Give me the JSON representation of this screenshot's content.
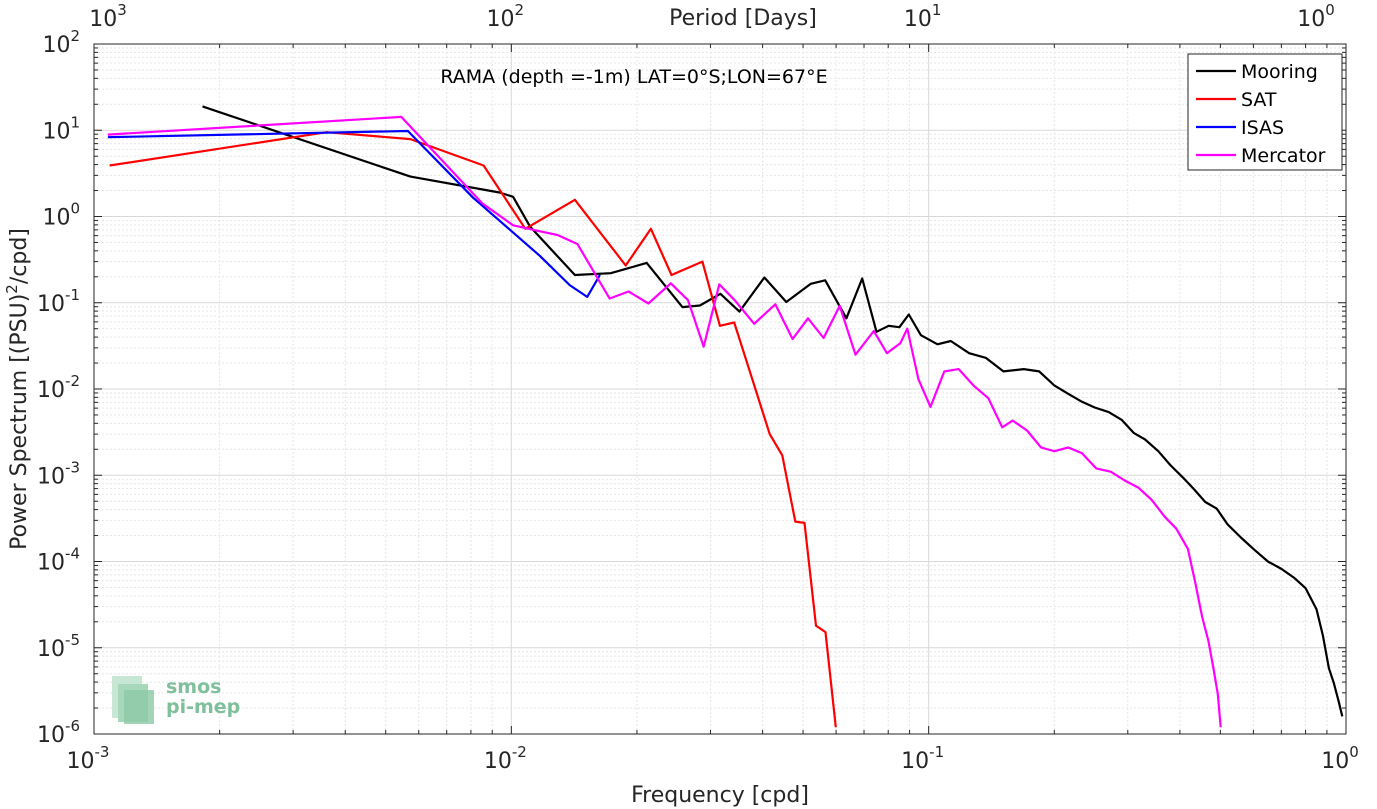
{
  "chart_data": {
    "type": "line",
    "title": "RAMA (depth =-1m) LAT=0°S;LON=67°E",
    "xlabel": "Frequency [cpd]",
    "ylabel": "Power Spectrum [(PSU)",
    "ylabel_sup": "2",
    "ylabel_tail": "/cpd]",
    "top_xlabel": "Period [Days]",
    "x_scale": "log",
    "y_scale": "log",
    "xlim": [
      0.001,
      1
    ],
    "ylim": [
      1e-06,
      100
    ],
    "grid": true,
    "legend_position": "top-right",
    "x_ticks": [
      {
        "value": 0.001,
        "base": "10",
        "exp": "-3"
      },
      {
        "value": 0.01,
        "base": "10",
        "exp": "-2"
      },
      {
        "value": 0.1,
        "base": "10",
        "exp": "-1"
      },
      {
        "value": 1,
        "base": "10",
        "exp": "0"
      }
    ],
    "top_ticks": [
      {
        "value": 0.001,
        "base": "10",
        "exp": "3"
      },
      {
        "value": 0.01,
        "base": "10",
        "exp": "2"
      },
      {
        "value": 0.1,
        "base": "10",
        "exp": "1"
      },
      {
        "value": 1,
        "base": "10",
        "exp": "0"
      }
    ],
    "y_ticks": [
      {
        "value": 100,
        "base": "10",
        "exp": "2"
      },
      {
        "value": 10,
        "base": "10",
        "exp": "1"
      },
      {
        "value": 1,
        "base": "10",
        "exp": "0"
      },
      {
        "value": 0.1,
        "base": "10",
        "exp": "-1"
      },
      {
        "value": 0.01,
        "base": "10",
        "exp": "-2"
      },
      {
        "value": 0.001,
        "base": "10",
        "exp": "-3"
      },
      {
        "value": 0.0001,
        "base": "10",
        "exp": "-4"
      },
      {
        "value": 1e-05,
        "base": "10",
        "exp": "-5"
      },
      {
        "value": 1e-06,
        "base": "10",
        "exp": "-6"
      }
    ],
    "series": [
      {
        "name": "Mooring",
        "color": "#000000",
        "points": [
          [
            0.00182,
            18.9
          ],
          [
            0.00573,
            2.9
          ],
          [
            0.00937,
            1.9
          ],
          [
            0.0101,
            1.69
          ],
          [
            0.0111,
            0.76
          ],
          [
            0.0142,
            0.21
          ],
          [
            0.0173,
            0.22
          ],
          [
            0.0211,
            0.29
          ],
          [
            0.0257,
            0.089
          ],
          [
            0.0283,
            0.093
          ],
          [
            0.0317,
            0.127
          ],
          [
            0.0352,
            0.079
          ],
          [
            0.0404,
            0.196
          ],
          [
            0.0456,
            0.102
          ],
          [
            0.0522,
            0.166
          ],
          [
            0.0565,
            0.182
          ],
          [
            0.0635,
            0.066
          ],
          [
            0.0693,
            0.191
          ],
          [
            0.075,
            0.046
          ],
          [
            0.0802,
            0.054
          ],
          [
            0.0851,
            0.052
          ],
          [
            0.0896,
            0.073
          ],
          [
            0.0958,
            0.042
          ],
          [
            0.105,
            0.033
          ],
          [
            0.113,
            0.036
          ],
          [
            0.125,
            0.026
          ],
          [
            0.137,
            0.023
          ],
          [
            0.151,
            0.016
          ],
          [
            0.169,
            0.017
          ],
          [
            0.184,
            0.016
          ],
          [
            0.2,
            0.011
          ],
          [
            0.216,
            0.0088
          ],
          [
            0.233,
            0.0071
          ],
          [
            0.25,
            0.0061
          ],
          [
            0.27,
            0.0054
          ],
          [
            0.29,
            0.0044
          ],
          [
            0.31,
            0.0031
          ],
          [
            0.33,
            0.0026
          ],
          [
            0.355,
            0.0019
          ],
          [
            0.38,
            0.0013
          ],
          [
            0.405,
            0.00096
          ],
          [
            0.43,
            0.00071
          ],
          [
            0.46,
            0.00049
          ],
          [
            0.49,
            0.00041
          ],
          [
            0.52,
            0.00027
          ],
          [
            0.56,
            0.00019
          ],
          [
            0.6,
            0.00014
          ],
          [
            0.65,
            0.0001
          ],
          [
            0.7,
            8.2e-05
          ],
          [
            0.75,
            6.5e-05
          ],
          [
            0.8,
            4.9e-05
          ],
          [
            0.85,
            2.8e-05
          ],
          [
            0.88,
            1.4e-05
          ],
          [
            0.91,
            5.8e-06
          ],
          [
            0.935,
            3.9e-06
          ],
          [
            0.96,
            2.4e-06
          ],
          [
            0.98,
            1.6e-06
          ]
        ]
      },
      {
        "name": "SAT",
        "color": "#ff0000",
        "points": [
          [
            0.00109,
            3.9
          ],
          [
            0.00361,
            9.5
          ],
          [
            0.00573,
            7.9
          ],
          [
            0.00858,
            3.9
          ],
          [
            0.0108,
            0.72
          ],
          [
            0.0142,
            1.56
          ],
          [
            0.0188,
            0.27
          ],
          [
            0.0216,
            0.72
          ],
          [
            0.0242,
            0.21
          ],
          [
            0.0287,
            0.3
          ],
          [
            0.0316,
            0.054
          ],
          [
            0.0342,
            0.059
          ],
          [
            0.0378,
            0.013
          ],
          [
            0.0416,
            0.003
          ],
          [
            0.0446,
            0.0017
          ],
          [
            0.0479,
            0.00029
          ],
          [
            0.0504,
            0.00028
          ],
          [
            0.0537,
            1.8e-05
          ],
          [
            0.0566,
            1.52e-05
          ],
          [
            0.0599,
            1.2e-06
          ]
        ]
      },
      {
        "name": "ISAS",
        "color": "#0000ff",
        "points": [
          [
            0.00108,
            8.3
          ],
          [
            0.00565,
            9.8
          ],
          [
            0.0081,
            1.65
          ],
          [
            0.0117,
            0.35
          ],
          [
            0.0138,
            0.16
          ],
          [
            0.0152,
            0.117
          ],
          [
            0.0163,
            0.21
          ]
        ]
      },
      {
        "name": "Mercator",
        "color": "#ff00ff",
        "points": [
          [
            0.00108,
            8.9
          ],
          [
            0.00545,
            14.3
          ],
          [
            0.00852,
            1.42
          ],
          [
            0.0101,
            0.79
          ],
          [
            0.0116,
            0.68
          ],
          [
            0.0129,
            0.61
          ],
          [
            0.0144,
            0.48
          ],
          [
            0.0172,
            0.112
          ],
          [
            0.0191,
            0.135
          ],
          [
            0.0213,
            0.098
          ],
          [
            0.0241,
            0.168
          ],
          [
            0.0265,
            0.107
          ],
          [
            0.0289,
            0.031
          ],
          [
            0.0315,
            0.163
          ],
          [
            0.0343,
            0.107
          ],
          [
            0.0382,
            0.057
          ],
          [
            0.0429,
            0.096
          ],
          [
            0.0472,
            0.038
          ],
          [
            0.0514,
            0.066
          ],
          [
            0.056,
            0.039
          ],
          [
            0.0612,
            0.092
          ],
          [
            0.0668,
            0.025
          ],
          [
            0.0739,
            0.047
          ],
          [
            0.0794,
            0.026
          ],
          [
            0.0855,
            0.034
          ],
          [
            0.0889,
            0.05
          ],
          [
            0.0945,
            0.013
          ],
          [
            0.101,
            0.0062
          ],
          [
            0.109,
            0.016
          ],
          [
            0.118,
            0.017
          ],
          [
            0.128,
            0.011
          ],
          [
            0.139,
            0.0078
          ],
          [
            0.15,
            0.0036
          ],
          [
            0.159,
            0.0043
          ],
          [
            0.172,
            0.0033
          ],
          [
            0.186,
            0.0021
          ],
          [
            0.2,
            0.0019
          ],
          [
            0.216,
            0.0021
          ],
          [
            0.233,
            0.0018
          ],
          [
            0.252,
            0.0012
          ],
          [
            0.273,
            0.0011
          ],
          [
            0.295,
            0.00087
          ],
          [
            0.318,
            0.00072
          ],
          [
            0.342,
            0.00052
          ],
          [
            0.368,
            0.00033
          ],
          [
            0.392,
            0.00024
          ],
          [
            0.418,
            0.00014
          ],
          [
            0.435,
            5.8e-05
          ],
          [
            0.452,
            2.3e-05
          ],
          [
            0.468,
            1.2e-05
          ],
          [
            0.481,
            5.9e-06
          ],
          [
            0.493,
            2.9e-06
          ],
          [
            0.501,
            1.2e-06
          ]
        ]
      }
    ]
  },
  "logo": {
    "line1": "smos",
    "line2": "pi-mep"
  }
}
